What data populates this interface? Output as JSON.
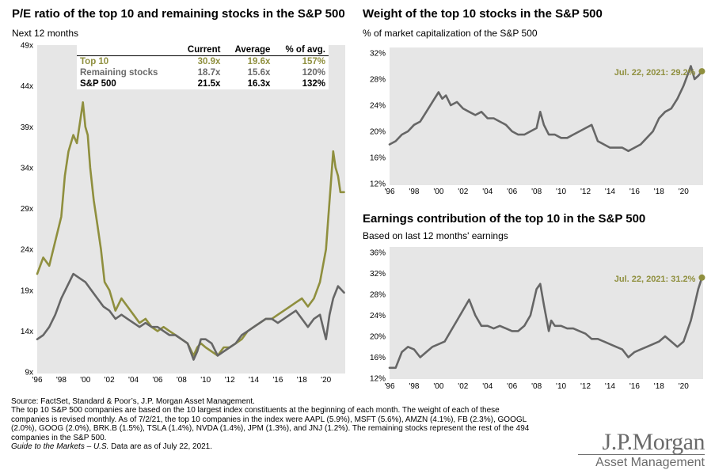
{
  "colors": {
    "top10": "#8f8f3e",
    "remaining": "#666666",
    "panel": "#e6e6e6"
  },
  "left": {
    "title": "P/E ratio of the top 10 and remaining stocks in the S&P 500",
    "subtitle": "Next 12 months",
    "table": {
      "headers": [
        "",
        "Current",
        "Average",
        "% of avg."
      ],
      "rows": [
        {
          "label": "Top 10",
          "current": "30.9x",
          "average": "19.6x",
          "pct": "157%"
        },
        {
          "label": "Remaining stocks",
          "current": "18.7x",
          "average": "15.6x",
          "pct": "120%"
        },
        {
          "label": "S&P 500",
          "current": "21.5x",
          "average": "16.3x",
          "pct": "132%"
        }
      ]
    }
  },
  "right_top": {
    "title": "Weight of the top 10 stocks in the S&P 500",
    "subtitle": "% of market capitalization of the S&P 500",
    "annotation": "Jul. 22, 2021: 29.2%"
  },
  "right_bottom": {
    "title": "Earnings contribution of the top 10 in the S&P 500",
    "subtitle": "Based on last 12 months' earnings",
    "annotation": "Jul. 22, 2021: 31.2%"
  },
  "footer": {
    "lines": [
      "Source: FactSet, Standard & Poor’s, J.P. Morgan Asset Management.",
      "The top 10 S&P 500 companies are based on the 10 largest index constituents at the beginning of each month. The weight of each of these",
      "companies is revised monthly. As of 7/2/21, the top 10 companies in the index were AAPL (5.9%), MSFT (5.6%), AMZN (4.1%), FB (2.3%), GOOGL",
      "(2.0%), GOOG (2.0%), BRK.B (1.5%), TSLA (1.4%), NVDA (1.4%),  JPM (1.3%), and JNJ (1.2%). The remaining stocks represent the rest of the 494",
      "companies in the S&P 500."
    ],
    "italic_part": "Guide to the Markets – U.S.",
    "italic_rest": " Data are as of July 22, 2021."
  },
  "logo": {
    "name": "J.P.Morgan",
    "sub": "Asset Management"
  },
  "chart_data": [
    {
      "type": "line",
      "title": "P/E ratio of the top 10 and remaining stocks in the S&P 500",
      "subtitle": "Next 12 months",
      "x_ticks": [
        "'96",
        "'98",
        "'00",
        "'02",
        "'04",
        "'06",
        "'08",
        "'10",
        "'12",
        "'14",
        "'16",
        "'18",
        "'20"
      ],
      "y_ticks": [
        "9x",
        "14x",
        "19x",
        "24x",
        "29x",
        "34x",
        "39x",
        "44x",
        "49x"
      ],
      "xlim": [
        1996,
        2021.6
      ],
      "ylim": [
        9,
        49
      ],
      "series": [
        {
          "name": "Top 10",
          "color": "#8f8f3e",
          "x": [
            1996,
            1996.5,
            1997,
            1997.5,
            1998,
            1998.3,
            1998.6,
            1999,
            1999.3,
            1999.6,
            1999.8,
            2000,
            2000.2,
            2000.4,
            2000.7,
            2001,
            2001.3,
            2001.6,
            2002,
            2002.5,
            2003,
            2003.5,
            2004,
            2004.5,
            2005,
            2005.5,
            2006,
            2006.5,
            2007,
            2007.5,
            2008,
            2008.5,
            2009,
            2009.3,
            2009.6,
            2010,
            2010.5,
            2011,
            2011.5,
            2012,
            2012.5,
            2013,
            2013.5,
            2014,
            2014.5,
            2015,
            2015.5,
            2016,
            2016.5,
            2017,
            2017.5,
            2018,
            2018.5,
            2019,
            2019.5,
            2020,
            2020.2,
            2020.4,
            2020.6,
            2020.8,
            2021,
            2021.2,
            2021.5
          ],
          "y": [
            21,
            23,
            22,
            25,
            28,
            33,
            36,
            38,
            37,
            40,
            42,
            39,
            38,
            34,
            30,
            27,
            24,
            20,
            19,
            16.5,
            18,
            17,
            16,
            15,
            15.5,
            14.5,
            14,
            14.5,
            14,
            13.5,
            13,
            12.5,
            11,
            12,
            12.5,
            12,
            11.5,
            11,
            12,
            12,
            12.5,
            13,
            14,
            14.5,
            15,
            15.5,
            15.5,
            16,
            16.5,
            17,
            17.5,
            18,
            17,
            18,
            20,
            24,
            28,
            32,
            36,
            34,
            33,
            31,
            31
          ]
        },
        {
          "name": "Remaining stocks",
          "color": "#666666",
          "x": [
            1996,
            1996.5,
            1997,
            1997.5,
            1998,
            1998.5,
            1999,
            1999.5,
            2000,
            2000.5,
            2001,
            2001.5,
            2002,
            2002.5,
            2003,
            2003.5,
            2004,
            2004.5,
            2005,
            2005.5,
            2006,
            2006.5,
            2007,
            2007.5,
            2008,
            2008.5,
            2009,
            2009.3,
            2009.6,
            2010,
            2010.5,
            2011,
            2011.5,
            2012,
            2012.5,
            2013,
            2013.5,
            2014,
            2014.5,
            2015,
            2015.5,
            2016,
            2016.5,
            2017,
            2017.5,
            2018,
            2018.5,
            2019,
            2019.5,
            2020,
            2020.3,
            2020.6,
            2021,
            2021.5
          ],
          "y": [
            13,
            13.5,
            14.5,
            16,
            18,
            19.5,
            21,
            20.5,
            20,
            19,
            18,
            17,
            16.5,
            15.5,
            16,
            15.5,
            15,
            14.5,
            15,
            14.5,
            14.5,
            14,
            13.5,
            13.5,
            13,
            12.5,
            10.5,
            11.5,
            13,
            13,
            12.5,
            11,
            11.5,
            12,
            12.5,
            13.5,
            14,
            14.5,
            15,
            15.5,
            15.5,
            15,
            15.5,
            16,
            16.5,
            15.5,
            14.5,
            15.5,
            16,
            13,
            16,
            18,
            19.5,
            18.7
          ]
        }
      ]
    },
    {
      "type": "line",
      "title": "Weight of the top 10 stocks in the S&P 500",
      "subtitle": "% of market capitalization of the S&P 500",
      "x_ticks": [
        "'96",
        "'98",
        "'00",
        "'02",
        "'04",
        "'06",
        "'08",
        "'10",
        "'12",
        "'14",
        "'16",
        "'18",
        "'20"
      ],
      "y_ticks": [
        "12%",
        "16%",
        "20%",
        "24%",
        "28%",
        "32%"
      ],
      "xlim": [
        1996,
        2021.6
      ],
      "ylim": [
        12,
        32
      ],
      "annotation": "Jul. 22, 2021: 29.2%",
      "series": [
        {
          "name": "",
          "color": "#666666",
          "x": [
            1996,
            1996.5,
            1997,
            1997.5,
            1998,
            1998.5,
            1999,
            1999.5,
            2000,
            2000.3,
            2000.6,
            2001,
            2001.5,
            2002,
            2002.5,
            2003,
            2003.5,
            2004,
            2004.5,
            2005,
            2005.5,
            2006,
            2006.5,
            2007,
            2007.5,
            2008,
            2008.3,
            2008.6,
            2009,
            2009.5,
            2010,
            2010.5,
            2011,
            2011.5,
            2012,
            2012.5,
            2013,
            2013.5,
            2014,
            2014.5,
            2015,
            2015.5,
            2016,
            2016.5,
            2017,
            2017.5,
            2018,
            2018.5,
            2019,
            2019.5,
            2020,
            2020.3,
            2020.6,
            2020.9,
            2021.2,
            2021.5
          ],
          "y": [
            18,
            18.5,
            19.5,
            20,
            21,
            21.5,
            23,
            24.5,
            26,
            25,
            25.5,
            24,
            24.5,
            23.5,
            23,
            22.5,
            23,
            22,
            22,
            21.5,
            21,
            20,
            19.5,
            19.5,
            20,
            20.5,
            23,
            21,
            19.5,
            19.5,
            19,
            19,
            19.5,
            20,
            20.5,
            21,
            18.5,
            18,
            17.5,
            17.5,
            17.5,
            17,
            17.5,
            18,
            19,
            20,
            22,
            23,
            23.5,
            25,
            27,
            28.5,
            30,
            28,
            28.5,
            29.2
          ]
        }
      ]
    },
    {
      "type": "line",
      "title": "Earnings contribution of the top 10 in the S&P 500",
      "subtitle": "Based on last 12 months' earnings",
      "x_ticks": [
        "'96",
        "'98",
        "'00",
        "'02",
        "'04",
        "'06",
        "'08",
        "'10",
        "'12",
        "'14",
        "'16",
        "'18",
        "'20"
      ],
      "y_ticks": [
        "12%",
        "16%",
        "20%",
        "24%",
        "28%",
        "32%",
        "36%"
      ],
      "xlim": [
        1996,
        2021.6
      ],
      "ylim": [
        12,
        36
      ],
      "annotation": "Jul. 22, 2021: 31.2%",
      "series": [
        {
          "name": "",
          "color": "#666666",
          "x": [
            1996,
            1996.5,
            1997,
            1997.5,
            1998,
            1998.5,
            1999,
            1999.5,
            2000,
            2000.5,
            2001,
            2001.5,
            2002,
            2002.5,
            2003,
            2003.5,
            2004,
            2004.5,
            2005,
            2005.5,
            2006,
            2006.5,
            2007,
            2007.5,
            2008,
            2008.3,
            2008.6,
            2009,
            2009.2,
            2009.5,
            2010,
            2010.5,
            2011,
            2011.5,
            2012,
            2012.5,
            2013,
            2013.5,
            2014,
            2014.5,
            2015,
            2015.5,
            2016,
            2016.5,
            2017,
            2017.5,
            2018,
            2018.5,
            2019,
            2019.5,
            2020,
            2020.3,
            2020.6,
            2020.9,
            2021.2,
            2021.5
          ],
          "y": [
            14,
            14,
            17,
            18,
            17.5,
            16,
            17,
            18,
            18.5,
            19,
            21,
            23,
            25,
            27,
            24,
            22,
            22,
            21.5,
            22,
            21.5,
            21,
            21,
            22,
            24,
            29,
            30,
            26,
            21,
            23,
            22,
            22,
            21.5,
            21.5,
            21,
            20.5,
            19.5,
            19.5,
            19,
            18.5,
            18,
            17.5,
            16,
            17,
            17.5,
            18,
            18.5,
            19,
            20,
            19,
            18,
            19,
            21,
            23,
            26,
            29,
            31.2
          ]
        }
      ]
    }
  ]
}
